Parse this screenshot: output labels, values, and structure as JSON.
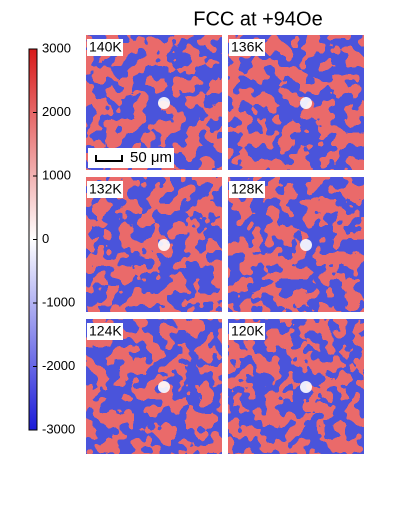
{
  "title": "FCC at +94Oe",
  "colorbar": {
    "ylim": [
      -3000,
      3000
    ],
    "yticks": [
      3000,
      2000,
      1000,
      0,
      -1000,
      -2000,
      -3000
    ]
  },
  "panels": [
    {
      "label": "140K"
    },
    {
      "label": "136K"
    },
    {
      "label": "132K"
    },
    {
      "label": "128K"
    },
    {
      "label": "124K"
    },
    {
      "label": "120K"
    }
  ],
  "scale_bar": "50 μm"
}
